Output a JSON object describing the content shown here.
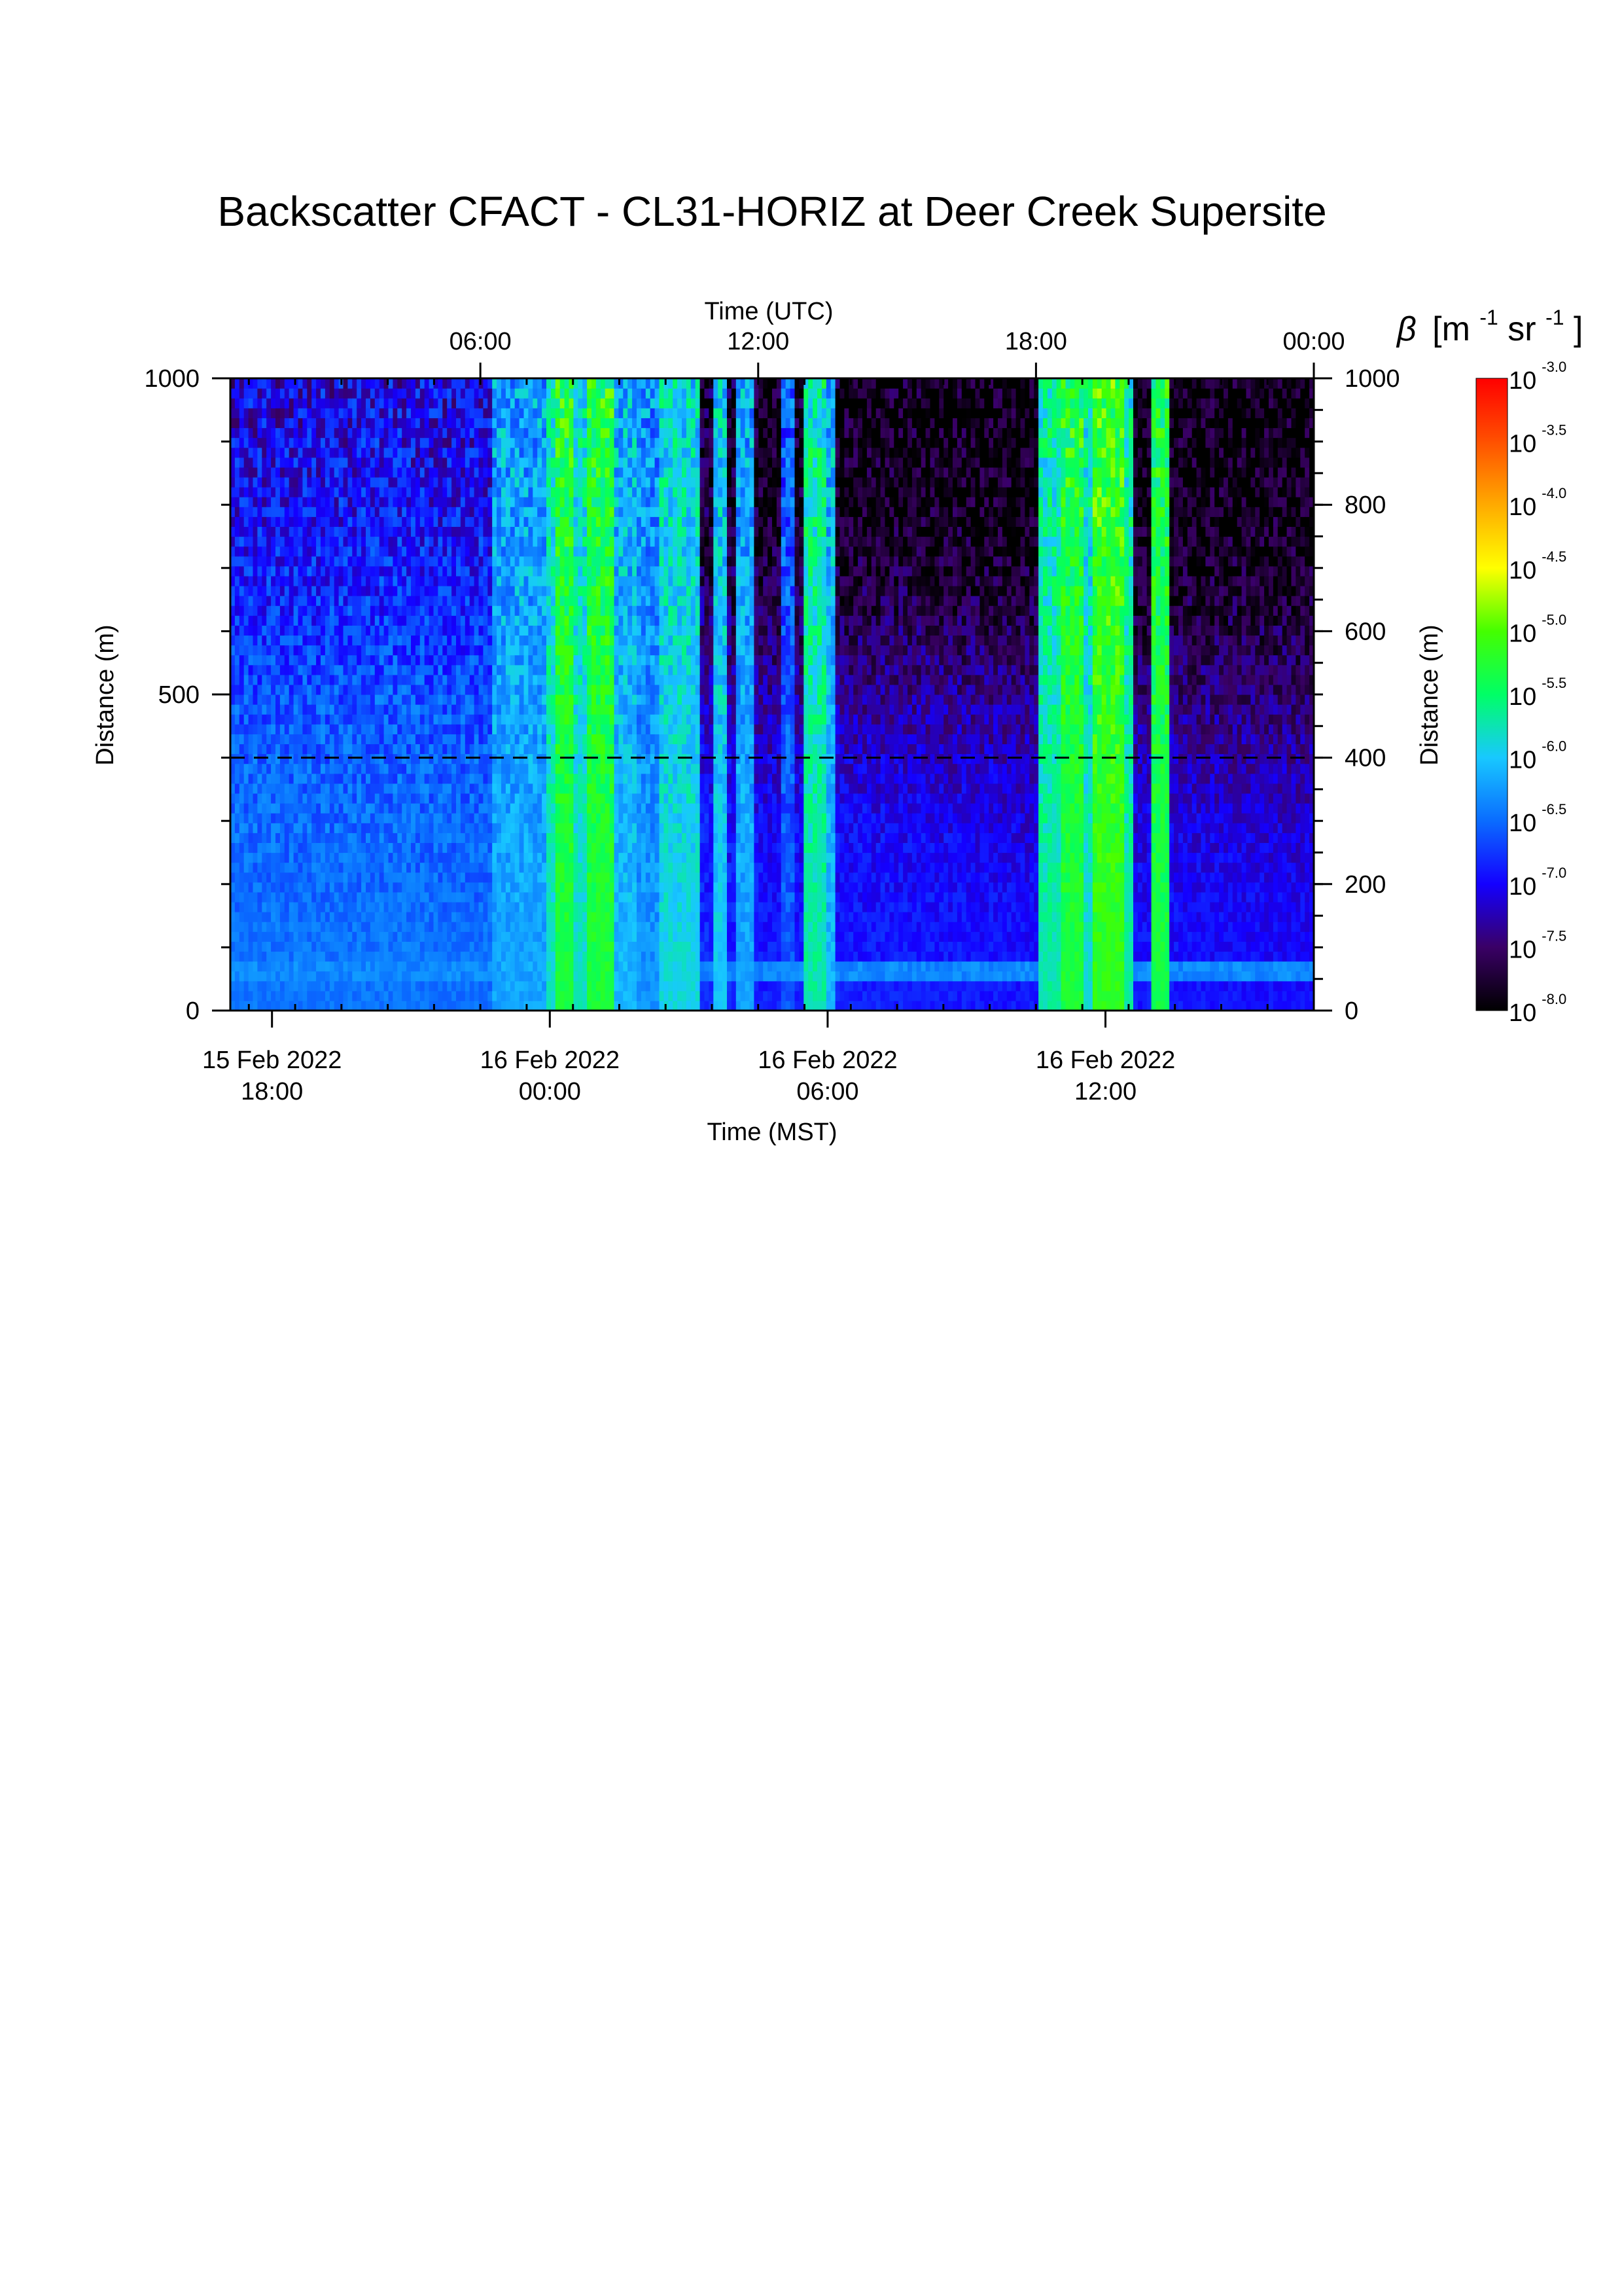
{
  "chart_data": {
    "type": "heatmap",
    "title": "Backscatter CFACT - CL31-HORIZ at Deer Creek Supersite",
    "x_bottom": {
      "label": "Time (MST)",
      "ticks": [
        {
          "t": 1.5,
          "date": "15 Feb 2022",
          "time": "18:00"
        },
        {
          "t": 7.5,
          "date": "16 Feb 2022",
          "time": "00:00"
        },
        {
          "t": 13.5,
          "date": "16 Feb 2022",
          "time": "06:00"
        },
        {
          "t": 19.5,
          "date": "16 Feb 2022",
          "time": "12:00"
        }
      ]
    },
    "x_top": {
      "label": "Time (UTC)",
      "ticks": [
        {
          "t": 6.0,
          "label": "06:00"
        },
        {
          "t": 12.0,
          "label": "12:00"
        },
        {
          "t": 18.0,
          "label": "18:00"
        },
        {
          "t": 24.0,
          "label": "00:00"
        }
      ]
    },
    "xlim_utc_hours": [
      0.6,
      24.0
    ],
    "y_left": {
      "label": "Distance (m)",
      "ticks": [
        0,
        500,
        1000
      ],
      "ylim": [
        0,
        1000
      ]
    },
    "y_right": {
      "label": "Distance (m)",
      "ticks": [
        0,
        200,
        400,
        600,
        800,
        1000
      ],
      "ylim": [
        0,
        1000
      ]
    },
    "reference_line": {
      "distance_m": 400,
      "style": "dashed"
    },
    "colorbar": {
      "label": "β [m-1 sr-1]",
      "label_parts": {
        "beta": "β",
        "open": "[m",
        "exp1": "-1",
        "mid": " sr",
        "exp2": "-1",
        "close": "]"
      },
      "min_exp": -8.0,
      "max_exp": -3.0,
      "ticks": [
        {
          "base": "10",
          "exp": "-3.0"
        },
        {
          "base": "10",
          "exp": "-3.5"
        },
        {
          "base": "10",
          "exp": "-4.0"
        },
        {
          "base": "10",
          "exp": "-4.5"
        },
        {
          "base": "10",
          "exp": "-5.0"
        },
        {
          "base": "10",
          "exp": "-5.5"
        },
        {
          "base": "10",
          "exp": "-6.0"
        },
        {
          "base": "10",
          "exp": "-6.5"
        },
        {
          "base": "10",
          "exp": "-7.0"
        },
        {
          "base": "10",
          "exp": "-7.5"
        },
        {
          "base": "10",
          "exp": "-8.0"
        }
      ],
      "colors": [
        "#000000",
        "#3a0066",
        "#1400ff",
        "#0a6cff",
        "#18c8ff",
        "#00ff66",
        "#44ff00",
        "#ffff00",
        "#ffaa00",
        "#ff5000",
        "#ff0000"
      ]
    },
    "field": {
      "distance_m": [
        0,
        100,
        200,
        300,
        400,
        500,
        600,
        700,
        800,
        900,
        1000
      ],
      "background": [
        {
          "t": 0.6,
          "log_beta": [
            -6.45,
            -6.45,
            -6.5,
            -6.5,
            -6.55,
            -6.65,
            -6.8,
            -6.9,
            -7.0,
            -7.05,
            -7.1
          ]
        },
        {
          "t": 4.0,
          "log_beta": [
            -6.45,
            -6.45,
            -6.5,
            -6.5,
            -6.55,
            -6.6,
            -6.75,
            -6.85,
            -6.95,
            -7.0,
            -7.05
          ]
        },
        {
          "t": 7.0,
          "log_beta": [
            -6.5,
            -6.5,
            -6.55,
            -6.55,
            -6.6,
            -6.7,
            -6.8,
            -6.9,
            -7.0,
            -7.1,
            -7.1
          ]
        },
        {
          "t": 10.0,
          "log_beta": [
            -6.7,
            -6.75,
            -6.8,
            -6.85,
            -6.95,
            -7.1,
            -7.3,
            -7.5,
            -7.6,
            -7.7,
            -7.7
          ]
        },
        {
          "t": 12.0,
          "log_beta": [
            -6.85,
            -6.9,
            -6.95,
            -7.0,
            -7.15,
            -7.35,
            -7.55,
            -7.75,
            -7.85,
            -7.9,
            -7.9
          ]
        },
        {
          "t": 15.0,
          "log_beta": [
            -6.85,
            -6.9,
            -6.95,
            -7.0,
            -7.15,
            -7.35,
            -7.55,
            -7.75,
            -7.85,
            -7.9,
            -7.9
          ]
        },
        {
          "t": 18.0,
          "log_beta": [
            -6.9,
            -6.95,
            -7.0,
            -7.1,
            -7.2,
            -7.4,
            -7.6,
            -7.8,
            -7.9,
            -7.95,
            -7.95
          ]
        },
        {
          "t": 21.0,
          "log_beta": [
            -6.9,
            -6.95,
            -7.0,
            -7.1,
            -7.25,
            -7.45,
            -7.65,
            -7.8,
            -7.9,
            -7.95,
            -7.95
          ]
        },
        {
          "t": 24.0,
          "log_beta": [
            -6.95,
            -7.0,
            -7.05,
            -7.15,
            -7.3,
            -7.5,
            -7.65,
            -7.8,
            -7.9,
            -7.95,
            -7.95
          ]
        }
      ],
      "bands": [
        {
          "t_start": 6.3,
          "t_end": 7.4,
          "log_beta": -6.2
        },
        {
          "t_start": 7.4,
          "t_end": 7.65,
          "log_beta": -5.8
        },
        {
          "t_start": 7.65,
          "t_end": 8.0,
          "log_beta": -5.3
        },
        {
          "t_start": 8.0,
          "t_end": 8.35,
          "log_beta": -5.8
        },
        {
          "t_start": 8.35,
          "t_end": 8.85,
          "log_beta": -5.3
        },
        {
          "t_start": 8.85,
          "t_end": 9.4,
          "log_beta": -6.1
        },
        {
          "t_start": 9.4,
          "t_end": 9.85,
          "log_beta": -6.3
        },
        {
          "t_start": 9.85,
          "t_end": 10.75,
          "log_beta": -5.9
        },
        {
          "t_start": 11.0,
          "t_end": 11.35,
          "log_beta": -6.0
        },
        {
          "t_start": 11.55,
          "t_end": 11.95,
          "log_beta": -6.2
        },
        {
          "t_start": 12.45,
          "t_end": 12.75,
          "log_beta": -6.6
        },
        {
          "t_start": 13.0,
          "t_end": 13.5,
          "log_beta": -5.7
        },
        {
          "t_start": 13.5,
          "t_end": 13.65,
          "log_beta": -6.1
        },
        {
          "t_start": 18.1,
          "t_end": 18.5,
          "log_beta": -5.7
        },
        {
          "t_start": 18.5,
          "t_end": 19.0,
          "log_beta": -5.3
        },
        {
          "t_start": 19.0,
          "t_end": 19.2,
          "log_beta": -5.8
        },
        {
          "t_start": 19.2,
          "t_end": 19.9,
          "log_beta": -5.15
        },
        {
          "t_start": 19.9,
          "t_end": 20.1,
          "log_beta": -5.7
        },
        {
          "t_start": 20.5,
          "t_end": 20.85,
          "log_beta": -5.35
        }
      ],
      "surface_layer": {
        "distance_range_m": [
          40,
          80
        ],
        "log_beta": -6.35
      }
    }
  }
}
